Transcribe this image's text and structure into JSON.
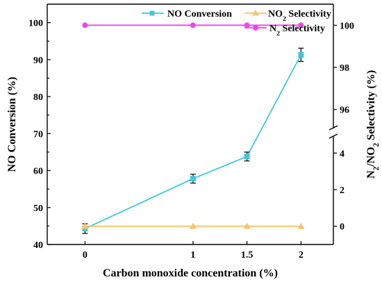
{
  "chart_data": {
    "type": "line",
    "x": [
      0,
      1,
      1.5,
      2
    ],
    "x_tick_labels": [
      "0",
      "1",
      "1.5",
      "2"
    ],
    "xlabel": "Carbon monoxide concentration (%)",
    "xlim": [
      -0.35,
      2.3
    ],
    "left_axis": {
      "label": "NO Conversion (%)",
      "ylim": [
        40,
        105
      ],
      "ticks": [
        40,
        50,
        60,
        70,
        80,
        90,
        100
      ]
    },
    "right_axis": {
      "label_parts": [
        "N",
        "2",
        "/NO",
        "2",
        " Selectivity (%)"
      ],
      "broken": true,
      "lower_segment": {
        "range": [
          -1,
          5
        ],
        "ticks": [
          0,
          2,
          4
        ]
      },
      "upper_segment": {
        "range": [
          95,
          101
        ],
        "ticks": [
          96,
          98,
          100
        ]
      }
    },
    "series": [
      {
        "name": "NO Conversion",
        "axis": "left",
        "color": "#3ec8e0",
        "marker": "square",
        "values": [
          44.3,
          57.8,
          63.8,
          91.3
        ],
        "error": [
          1.3,
          1.2,
          1.2,
          1.8
        ]
      },
      {
        "name_parts": [
          "NO",
          "2",
          " Selectivity"
        ],
        "axis": "right",
        "color": "#f5c36b",
        "marker": "triangle",
        "values": [
          0,
          0,
          0,
          0
        ]
      },
      {
        "name_parts": [
          "N",
          "2",
          " Selectivity"
        ],
        "axis": "right",
        "color": "#ee44ee",
        "marker": "circle",
        "values": [
          100,
          100,
          100,
          100
        ]
      }
    ]
  }
}
